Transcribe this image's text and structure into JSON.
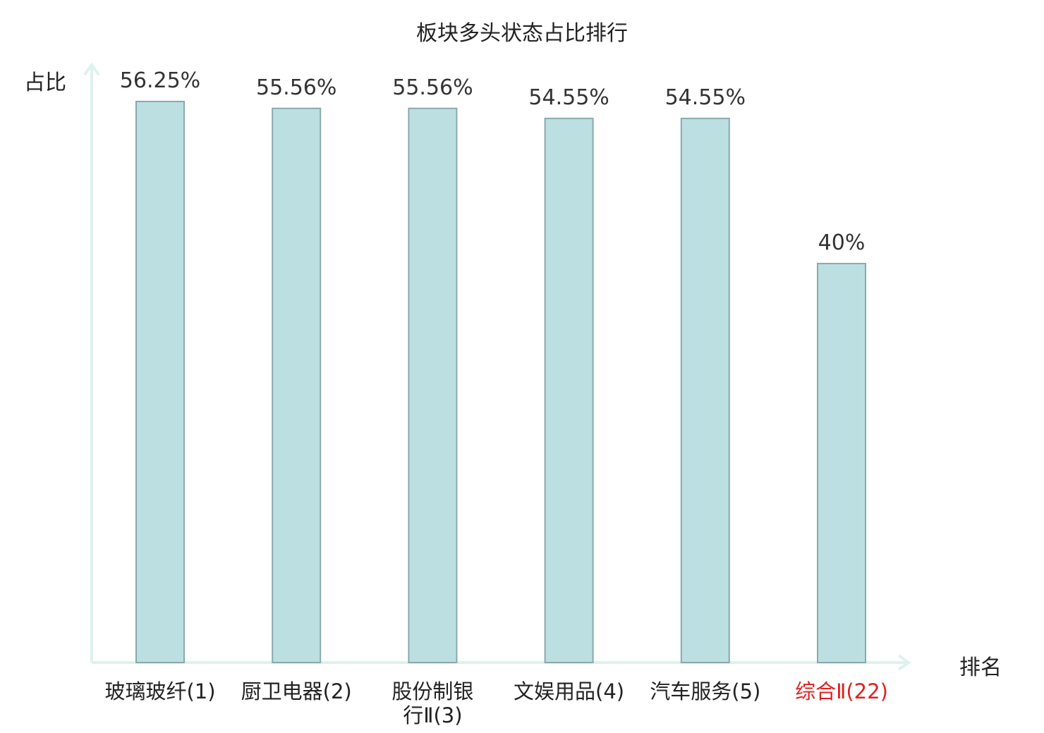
{
  "chart_data": {
    "type": "bar",
    "title": "板块多头状态占比排行",
    "ylabel": "占比",
    "xlabel": "排名",
    "categories": [
      "玻璃玻纤(1)",
      "厨卫电器(2)",
      "股份制银行Ⅱ(3)",
      "文娱用品(4)",
      "汽车服务(5)",
      "综合Ⅱ(22)"
    ],
    "category_lines": [
      [
        "玻璃玻纤(1)"
      ],
      [
        "厨卫电器(2)"
      ],
      [
        "股份制银",
        "行Ⅱ(3)"
      ],
      [
        "文娱用品(4)"
      ],
      [
        "汽车服务(5)"
      ],
      [
        "综合Ⅱ(22)"
      ]
    ],
    "values": [
      56.25,
      55.56,
      55.56,
      54.55,
      54.55,
      40
    ],
    "value_labels": [
      "56.25%",
      "55.56%",
      "55.56%",
      "54.55%",
      "54.55%",
      "40%"
    ],
    "highlight_index": 5,
    "ylim": [
      0,
      60
    ],
    "grid": false,
    "colors": {
      "bar_fill": "#bce0e2",
      "bar_stroke": "#8aa9ab",
      "axis": "#dff1ef",
      "highlight_text": "#e02020"
    }
  }
}
